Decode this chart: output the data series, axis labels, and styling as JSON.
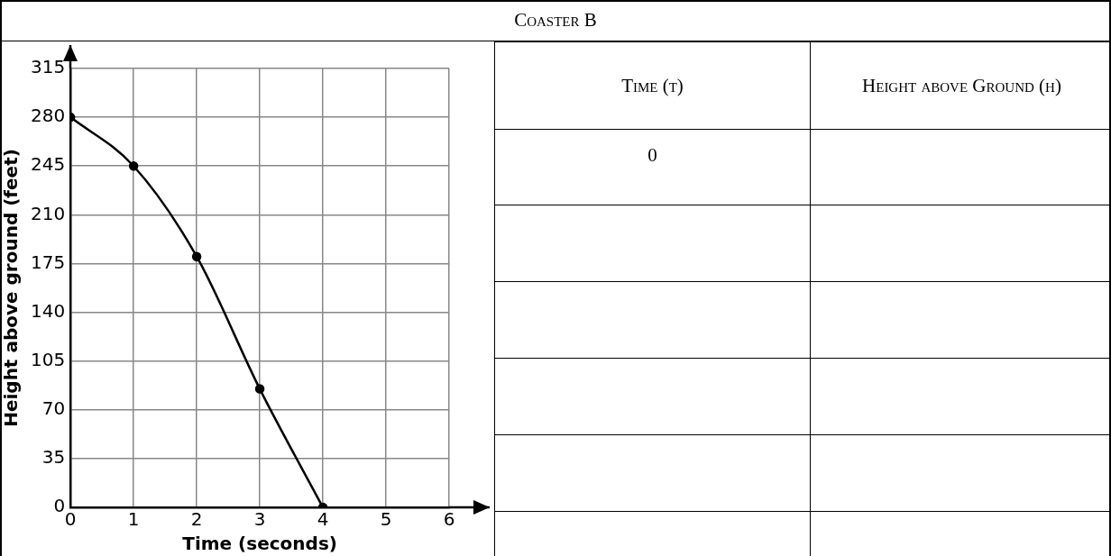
{
  "chart_data": [
    {
      "type": "other",
      "title": "Coaster B"
    },
    {
      "type": "line",
      "xlabel": "Time (seconds)",
      "ylabel": "Height above ground (feet)",
      "x": [
        0,
        1,
        2,
        3,
        4
      ],
      "series": [
        {
          "color": "#000000",
          "values": [
            280,
            245,
            180,
            85,
            0
          ]
        }
      ],
      "xlim": [
        0,
        6
      ],
      "xticks": [
        0,
        1,
        2,
        3,
        4,
        5,
        6
      ],
      "ylim": [
        0,
        315
      ],
      "yticks": [
        0,
        35,
        70,
        105,
        140,
        175,
        210,
        245,
        280,
        315
      ],
      "grid": true,
      "legend": false,
      "marker": "circle",
      "line_style": "solid"
    },
    {
      "type": "other",
      "categories": [
        "Time (t)",
        "Height above Ground (h)"
      ],
      "annotations": [
        "0"
      ]
    }
  ]
}
